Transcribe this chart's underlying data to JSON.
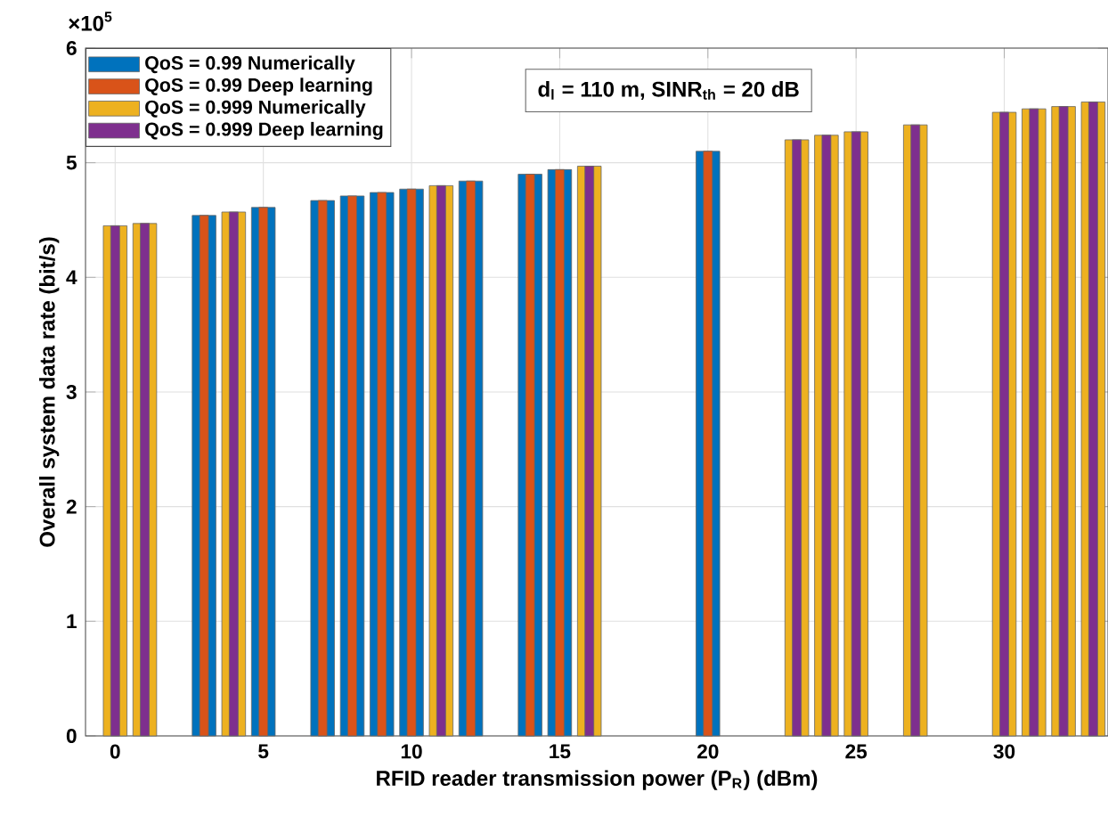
{
  "chart_data": {
    "type": "bar",
    "xlabel": "RFID reader transmission power (P$_{R}$) (dBm)",
    "ylabel": "Overall system data rate (bit/s)",
    "annotations": [
      "×10$^{5}$",
      "d$_{l}$ = 110 m, SINR$_{th}$ = 20 dB"
    ],
    "x": [
      0,
      1,
      3,
      4,
      5,
      7,
      8,
      9,
      10,
      11,
      12,
      14,
      15,
      16,
      20,
      23,
      24,
      25,
      27,
      30,
      31,
      32,
      33
    ],
    "series": [
      {
        "name": "QoS = 0.99 Numerically",
        "color": "#0072bd",
        "values": [
          null,
          null,
          4.54,
          null,
          4.61,
          4.67,
          4.71,
          4.74,
          4.77,
          null,
          4.84,
          4.9,
          4.94,
          null,
          5.1,
          null,
          null,
          null,
          null,
          null,
          null,
          null,
          null
        ]
      },
      {
        "name": "QoS = 0.99 Deep learning",
        "color": "#d95319",
        "values": [
          null,
          null,
          4.54,
          null,
          4.61,
          4.67,
          4.71,
          4.74,
          4.77,
          null,
          4.84,
          4.9,
          4.94,
          null,
          5.1,
          null,
          null,
          null,
          null,
          null,
          null,
          null,
          null
        ]
      },
      {
        "name": "QoS = 0.999 Numerically",
        "color": "#edb120",
        "values": [
          4.45,
          4.47,
          null,
          4.57,
          null,
          null,
          null,
          null,
          null,
          4.8,
          null,
          null,
          null,
          4.97,
          null,
          5.2,
          5.24,
          5.27,
          5.33,
          5.44,
          5.47,
          5.49,
          5.53
        ]
      },
      {
        "name": "QoS = 0.999 Deep learning",
        "color": "#7e2f8e",
        "values": [
          4.45,
          4.47,
          null,
          4.57,
          null,
          null,
          null,
          null,
          null,
          4.8,
          null,
          null,
          null,
          4.97,
          null,
          5.2,
          5.24,
          5.27,
          5.33,
          5.44,
          5.47,
          5.49,
          5.53
        ]
      }
    ],
    "xlim": [
      -1,
      33.5
    ],
    "xticks": [
      0,
      5,
      10,
      15,
      20,
      25,
      30
    ],
    "ylim": [
      0,
      6
    ],
    "yticks": [
      0,
      1,
      2,
      3,
      4,
      5,
      6
    ],
    "grid": true,
    "legend": "top left"
  }
}
